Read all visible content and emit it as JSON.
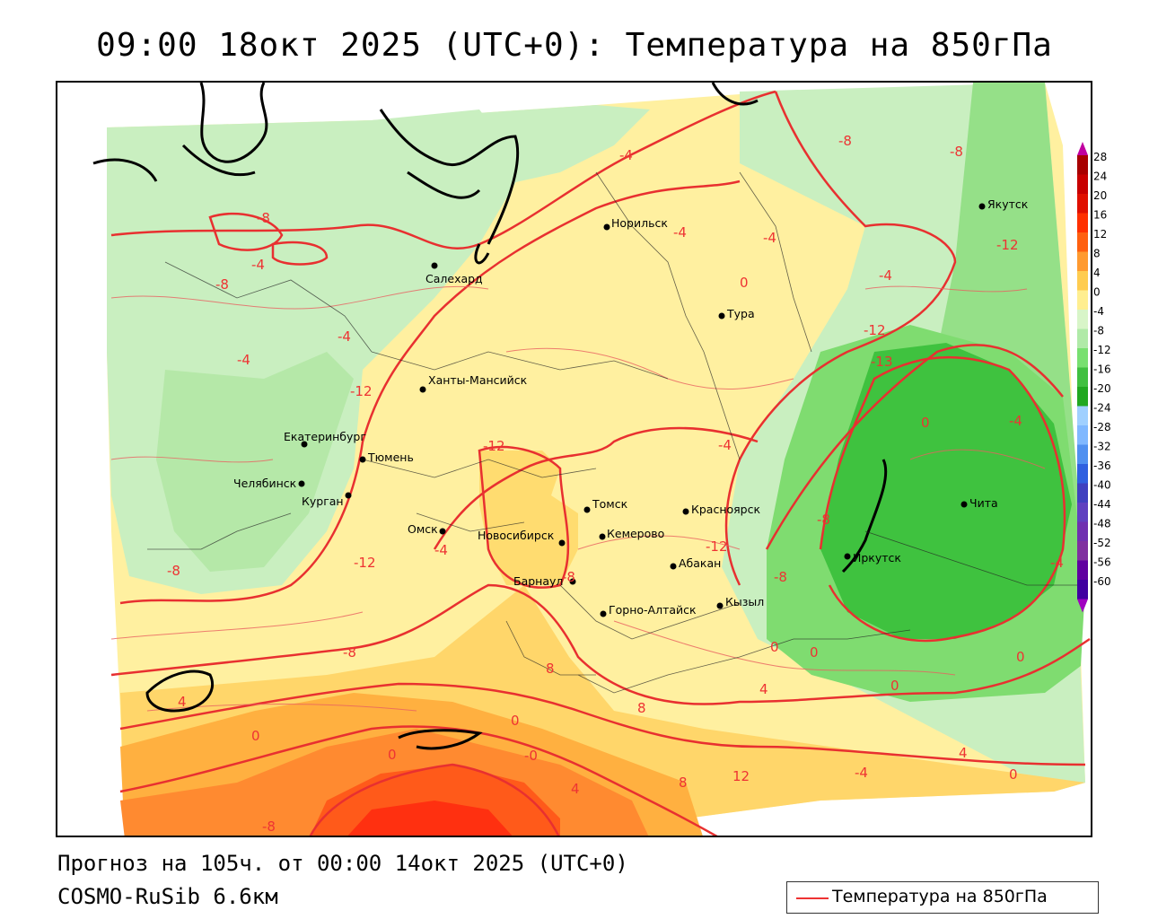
{
  "header": {
    "title": "09:00 18окт 2025 (UTC+0): Температура на 850гПа"
  },
  "footer": {
    "forecast": "Прогноз на 105ч. от 00:00 14окт 2025 (UTC+0)",
    "model": "COSMO-RuSib 6.6км"
  },
  "legend": {
    "line_label": "Температура на 850гПа",
    "line_color": "#e83030"
  },
  "colorbar": {
    "ticks": [
      "28",
      "24",
      "20",
      "16",
      "12",
      "8",
      "4",
      "0",
      "-4",
      "-8",
      "-12",
      "-16",
      "-20",
      "-24",
      "-28",
      "-32",
      "-36",
      "-40",
      "-44",
      "-48",
      "-52",
      "-56",
      "-60"
    ],
    "colors": [
      "#a80000",
      "#c80000",
      "#e01000",
      "#ff3000",
      "#ff6010",
      "#ff9a30",
      "#ffcc50",
      "#ffee90",
      "#d8f5c8",
      "#b0eaa8",
      "#78e070",
      "#40c040",
      "#20a820",
      "#a0d0ff",
      "#80b8ff",
      "#5090f0",
      "#3060e0",
      "#4040c0",
      "#6040c0",
      "#7030b0",
      "#8030a0",
      "#6000a0",
      "#4000a0"
    ]
  },
  "cities": [
    {
      "name": "Салехард"
    },
    {
      "name": "Норильск"
    },
    {
      "name": "Якутск"
    },
    {
      "name": "Тура"
    },
    {
      "name": "Ханты-Мансийск"
    },
    {
      "name": "Екатеринбург"
    },
    {
      "name": "Тюмень"
    },
    {
      "name": "Челябинск"
    },
    {
      "name": "Курган"
    },
    {
      "name": "Омск"
    },
    {
      "name": "Новосибирск"
    },
    {
      "name": "Томск"
    },
    {
      "name": "Кемерово"
    },
    {
      "name": "Барнаул"
    },
    {
      "name": "Красноярск"
    },
    {
      "name": "Абакан"
    },
    {
      "name": "Кызыл"
    },
    {
      "name": "Горно-Алтайск"
    },
    {
      "name": "Иркутск"
    },
    {
      "name": "Чита"
    }
  ],
  "isotherm_labels": [
    "-4",
    "-8",
    "-8",
    "-8",
    "-4",
    "-4",
    "-12",
    "-4",
    "0",
    "-4",
    "-8",
    "-12",
    "-4",
    "-4",
    "-13",
    "-12",
    "0",
    "-4",
    "-12",
    "-4",
    "-4",
    "-8",
    "-12",
    "-8",
    "-12",
    "-8",
    "-8",
    "-4",
    "-8",
    "0",
    "0",
    "0",
    "0",
    "4",
    "8",
    "4",
    "8",
    "4",
    "0",
    "0",
    "0",
    "-0",
    "4",
    "8",
    "12",
    "-4",
    "0",
    "-8"
  ]
}
